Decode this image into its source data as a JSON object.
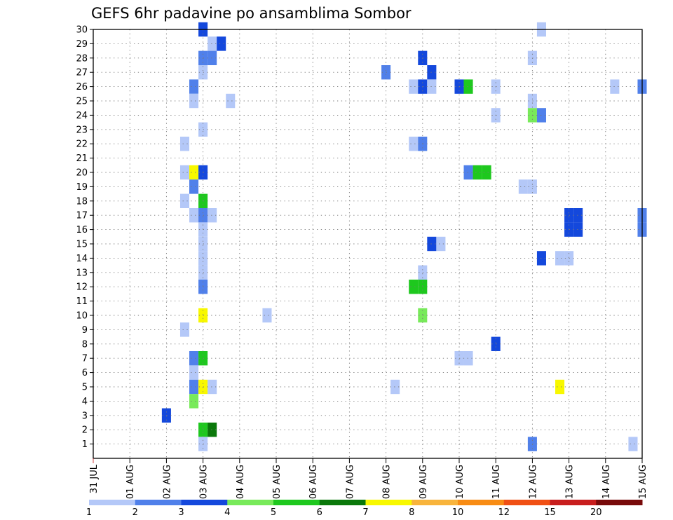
{
  "chart_data": {
    "type": "heatmap",
    "title": "GEFS 6hr padavine po ansamblima Sombor",
    "xlabel": "",
    "ylabel": "",
    "x_tick_labels": [
      "31 JUL",
      "01 AUG",
      "02 AUG",
      "03 AUG",
      "04 AUG",
      "05 AUG",
      "06 AUG",
      "07 AUG",
      "08 AUG",
      "09 AUG",
      "10 AUG",
      "11 AUG",
      "12 AUG",
      "13 AUG",
      "14 AUG",
      "15 AUG"
    ],
    "x_range_days": [
      0,
      15
    ],
    "y_tick_labels": [
      "1",
      "2",
      "3",
      "4",
      "5",
      "6",
      "7",
      "8",
      "9",
      "10",
      "11",
      "12",
      "13",
      "14",
      "15",
      "16",
      "17",
      "18",
      "19",
      "20",
      "21",
      "22",
      "23",
      "24",
      "25",
      "26",
      "27",
      "28",
      "29",
      "30"
    ],
    "y_range": [
      0,
      30
    ],
    "grid": true,
    "colorbar": {
      "labels": [
        "1",
        "2",
        "3",
        "4",
        "5",
        "6",
        "7",
        "8",
        "10",
        "12",
        "15",
        "20"
      ],
      "colors": [
        "#b4c8f8",
        "#5080ea",
        "#1448dc",
        "#78ea5a",
        "#1ec81e",
        "#0a780a",
        "#f8f800",
        "#f8b43c",
        "#f88c14",
        "#f05014",
        "#c81e1e",
        "#780a0a"
      ]
    },
    "cells": [
      {
        "member": 30,
        "day": 3.0,
        "bin": 3
      },
      {
        "member": 30,
        "day": 12.25,
        "bin": 1
      },
      {
        "member": 29,
        "day": 3.25,
        "bin": 1
      },
      {
        "member": 29,
        "day": 3.5,
        "bin": 3
      },
      {
        "member": 28,
        "day": 3.0,
        "bin": 2
      },
      {
        "member": 28,
        "day": 3.25,
        "bin": 2
      },
      {
        "member": 28,
        "day": 9.0,
        "bin": 3
      },
      {
        "member": 28,
        "day": 12.0,
        "bin": 1
      },
      {
        "member": 27,
        "day": 3.0,
        "bin": 1
      },
      {
        "member": 27,
        "day": 8.0,
        "bin": 2
      },
      {
        "member": 27,
        "day": 9.25,
        "bin": 3
      },
      {
        "member": 26,
        "day": 2.75,
        "bin": 2
      },
      {
        "member": 26,
        "day": 8.75,
        "bin": 1
      },
      {
        "member": 26,
        "day": 9.0,
        "bin": 3
      },
      {
        "member": 26,
        "day": 9.25,
        "bin": 1
      },
      {
        "member": 26,
        "day": 10.0,
        "bin": 3
      },
      {
        "member": 26,
        "day": 10.25,
        "bin": 5
      },
      {
        "member": 26,
        "day": 11.0,
        "bin": 1
      },
      {
        "member": 26,
        "day": 14.25,
        "bin": 1
      },
      {
        "member": 26,
        "day": 15.0,
        "bin": 2
      },
      {
        "member": 25,
        "day": 2.75,
        "bin": 1
      },
      {
        "member": 25,
        "day": 3.75,
        "bin": 1
      },
      {
        "member": 25,
        "day": 12.0,
        "bin": 1
      },
      {
        "member": 24,
        "day": 11.0,
        "bin": 1
      },
      {
        "member": 24,
        "day": 12.0,
        "bin": 4
      },
      {
        "member": 24,
        "day": 12.25,
        "bin": 2
      },
      {
        "member": 23,
        "day": 3.0,
        "bin": 1
      },
      {
        "member": 22,
        "day": 2.5,
        "bin": 1
      },
      {
        "member": 22,
        "day": 8.75,
        "bin": 1
      },
      {
        "member": 22,
        "day": 9.0,
        "bin": 2
      },
      {
        "member": 20,
        "day": 2.5,
        "bin": 1
      },
      {
        "member": 20,
        "day": 2.75,
        "bin": 7
      },
      {
        "member": 20,
        "day": 3.0,
        "bin": 3
      },
      {
        "member": 20,
        "day": 10.25,
        "bin": 2
      },
      {
        "member": 20,
        "day": 10.5,
        "bin": 5
      },
      {
        "member": 20,
        "day": 10.75,
        "bin": 5
      },
      {
        "member": 19,
        "day": 2.75,
        "bin": 2
      },
      {
        "member": 19,
        "day": 11.75,
        "bin": 1
      },
      {
        "member": 19,
        "day": 12.0,
        "bin": 1
      },
      {
        "member": 18,
        "day": 2.5,
        "bin": 1
      },
      {
        "member": 18,
        "day": 3.0,
        "bin": 5
      },
      {
        "member": 17,
        "day": 2.75,
        "bin": 1
      },
      {
        "member": 17,
        "day": 3.0,
        "bin": 2
      },
      {
        "member": 17,
        "day": 3.25,
        "bin": 1
      },
      {
        "member": 17,
        "day": 13.0,
        "bin": 3
      },
      {
        "member": 17,
        "day": 13.25,
        "bin": 3
      },
      {
        "member": 17,
        "day": 15.0,
        "bin": 2
      },
      {
        "member": 16,
        "day": 3.0,
        "bin": 1
      },
      {
        "member": 16,
        "day": 13.0,
        "bin": 3
      },
      {
        "member": 16,
        "day": 13.25,
        "bin": 3
      },
      {
        "member": 16,
        "day": 15.0,
        "bin": 2
      },
      {
        "member": 15,
        "day": 3.0,
        "bin": 1
      },
      {
        "member": 15,
        "day": 9.25,
        "bin": 3
      },
      {
        "member": 15,
        "day": 9.5,
        "bin": 1
      },
      {
        "member": 14,
        "day": 3.0,
        "bin": 1
      },
      {
        "member": 14,
        "day": 12.25,
        "bin": 3
      },
      {
        "member": 14,
        "day": 12.75,
        "bin": 1
      },
      {
        "member": 14,
        "day": 13.0,
        "bin": 1
      },
      {
        "member": 13,
        "day": 3.0,
        "bin": 1
      },
      {
        "member": 13,
        "day": 9.0,
        "bin": 1
      },
      {
        "member": 12,
        "day": 3.0,
        "bin": 2
      },
      {
        "member": 12,
        "day": 8.75,
        "bin": 5
      },
      {
        "member": 12,
        "day": 9.0,
        "bin": 5
      },
      {
        "member": 10,
        "day": 3.0,
        "bin": 7
      },
      {
        "member": 10,
        "day": 4.75,
        "bin": 1
      },
      {
        "member": 10,
        "day": 9.0,
        "bin": 4
      },
      {
        "member": 9,
        "day": 2.5,
        "bin": 1
      },
      {
        "member": 8,
        "day": 11.0,
        "bin": 3
      },
      {
        "member": 7,
        "day": 2.75,
        "bin": 2
      },
      {
        "member": 7,
        "day": 3.0,
        "bin": 5
      },
      {
        "member": 7,
        "day": 10.0,
        "bin": 1
      },
      {
        "member": 7,
        "day": 10.25,
        "bin": 1
      },
      {
        "member": 6,
        "day": 2.75,
        "bin": 1
      },
      {
        "member": 5,
        "day": 2.75,
        "bin": 2
      },
      {
        "member": 5,
        "day": 3.0,
        "bin": 7
      },
      {
        "member": 5,
        "day": 3.25,
        "bin": 1
      },
      {
        "member": 5,
        "day": 8.25,
        "bin": 1
      },
      {
        "member": 5,
        "day": 12.75,
        "bin": 7
      },
      {
        "member": 4,
        "day": 2.75,
        "bin": 4
      },
      {
        "member": 3,
        "day": 2.0,
        "bin": 3
      },
      {
        "member": 2,
        "day": 3.0,
        "bin": 5
      },
      {
        "member": 2,
        "day": 3.25,
        "bin": 6
      },
      {
        "member": 1,
        "day": 3.0,
        "bin": 1
      },
      {
        "member": 1,
        "day": 12.0,
        "bin": 2
      },
      {
        "member": 1,
        "day": 14.75,
        "bin": 1
      }
    ]
  }
}
